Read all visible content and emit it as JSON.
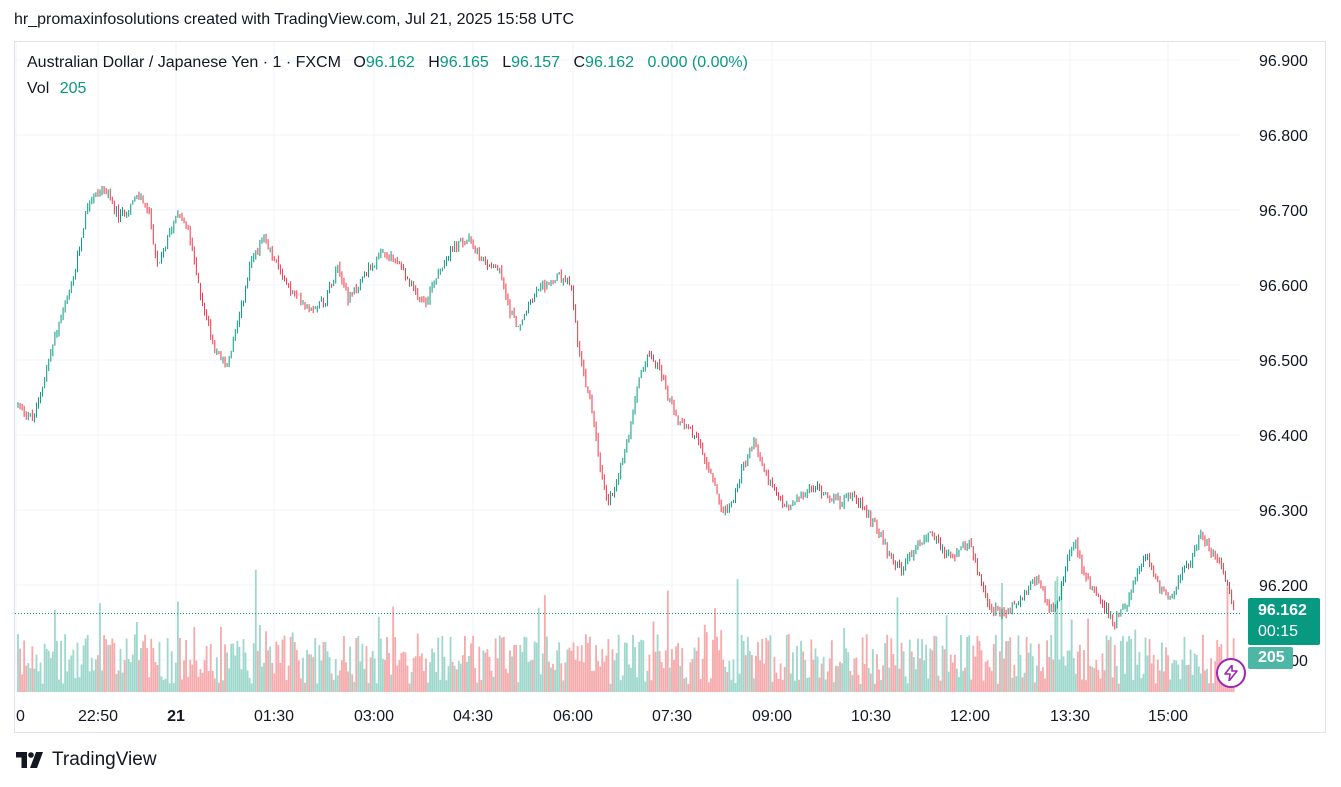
{
  "caption": "hr_promaxinfosolutions created with TradingView.com, Jul 21, 2025 15:58 UTC",
  "legend": {
    "symbol": "Australian Dollar / Japanese Yen · 1 · FXCM",
    "o_label": "O",
    "o_value": "96.162",
    "h_label": "H",
    "h_value": "96.165",
    "l_label": "L",
    "l_value": "96.157",
    "c_label": "C",
    "c_value": "96.162",
    "change": "0.000 (0.00%)",
    "vol_label": "Vol",
    "vol_value": "205"
  },
  "badges": {
    "price": "96.162",
    "countdown": "00:15",
    "volume": "205"
  },
  "footer": {
    "brand": "TradingView"
  },
  "colors": {
    "up": "#089981",
    "down": "#f23645",
    "vol_up": "#9ed7cb",
    "vol_down": "#f5aaab"
  },
  "chart_data": {
    "type": "candlestick",
    "y_ticks": [
      "96.900",
      "96.800",
      "96.700",
      "96.600",
      "96.500",
      "96.400",
      "96.300",
      "96.200",
      "96.100"
    ],
    "y_tick_values": [
      96.9,
      96.8,
      96.7,
      96.6,
      96.5,
      96.4,
      96.3,
      96.2,
      96.1
    ],
    "x_ticks": [
      "0",
      "22:50",
      "21",
      "01:30",
      "03:00",
      "04:30",
      "06:00",
      "07:30",
      "09:00",
      "10:30",
      "12:00",
      "13:30",
      "15:00"
    ],
    "ylim": [
      96.04,
      96.92
    ],
    "last_price": 96.162,
    "grid": true,
    "close_path": [
      [
        0,
        96.44
      ],
      [
        1.0,
        96.42
      ],
      [
        2.5,
        96.54
      ],
      [
        3.5,
        96.6
      ],
      [
        4.5,
        96.71
      ],
      [
        5.5,
        96.73
      ],
      [
        6.5,
        96.69
      ],
      [
        7.4,
        96.71
      ],
      [
        7.9,
        96.72
      ],
      [
        8.5,
        96.69
      ],
      [
        9.0,
        96.62
      ],
      [
        9.6,
        96.66
      ],
      [
        10.3,
        96.7
      ],
      [
        11.0,
        96.67
      ],
      [
        11.6,
        96.6
      ],
      [
        12.6,
        96.52
      ],
      [
        13.4,
        96.49
      ],
      [
        14.2,
        96.55
      ],
      [
        15.0,
        96.63
      ],
      [
        15.8,
        96.66
      ],
      [
        16.6,
        96.63
      ],
      [
        17.6,
        96.59
      ],
      [
        18.8,
        96.57
      ],
      [
        19.8,
        96.58
      ],
      [
        20.6,
        96.63
      ],
      [
        21.3,
        96.58
      ],
      [
        22.5,
        96.62
      ],
      [
        23.5,
        96.64
      ],
      [
        24.5,
        96.63
      ],
      [
        25.5,
        96.59
      ],
      [
        26.3,
        96.58
      ],
      [
        27.1,
        96.62
      ],
      [
        28.0,
        96.65
      ],
      [
        29.0,
        96.66
      ],
      [
        30.1,
        96.63
      ],
      [
        31.0,
        96.62
      ],
      [
        31.6,
        96.57
      ],
      [
        32.3,
        96.54
      ],
      [
        33.0,
        96.58
      ],
      [
        34.0,
        96.6
      ],
      [
        34.8,
        96.61
      ],
      [
        35.6,
        96.6
      ],
      [
        36.2,
        96.5
      ],
      [
        37.0,
        96.43
      ],
      [
        37.5,
        96.35
      ],
      [
        38.0,
        96.31
      ],
      [
        38.6,
        96.34
      ],
      [
        39.3,
        96.4
      ],
      [
        40.0,
        96.48
      ],
      [
        40.7,
        96.51
      ],
      [
        41.3,
        96.49
      ],
      [
        42.0,
        96.44
      ],
      [
        42.8,
        96.41
      ],
      [
        43.6,
        96.4
      ],
      [
        44.4,
        96.36
      ],
      [
        45.3,
        96.3
      ],
      [
        46.0,
        96.31
      ],
      [
        46.7,
        96.36
      ],
      [
        47.4,
        96.39
      ],
      [
        48.1,
        96.35
      ],
      [
        48.8,
        96.32
      ],
      [
        49.6,
        96.3
      ],
      [
        50.5,
        96.32
      ],
      [
        51.4,
        96.33
      ],
      [
        52.2,
        96.32
      ],
      [
        53.0,
        96.31
      ],
      [
        53.8,
        96.32
      ],
      [
        54.6,
        96.3
      ],
      [
        55.4,
        96.27
      ],
      [
        56.1,
        96.24
      ],
      [
        56.8,
        96.22
      ],
      [
        57.5,
        96.24
      ],
      [
        58.2,
        96.26
      ],
      [
        58.9,
        96.27
      ],
      [
        59.7,
        96.24
      ],
      [
        60.5,
        96.24
      ],
      [
        61.2,
        96.26
      ],
      [
        61.9,
        96.21
      ],
      [
        62.6,
        96.17
      ],
      [
        63.4,
        96.16
      ],
      [
        64.1,
        96.17
      ],
      [
        64.8,
        96.19
      ],
      [
        65.6,
        96.21
      ],
      [
        66.4,
        96.17
      ],
      [
        67.0,
        96.18
      ],
      [
        67.6,
        96.24
      ],
      [
        68.1,
        96.26
      ],
      [
        68.7,
        96.21
      ],
      [
        69.4,
        96.19
      ],
      [
        70.0,
        96.17
      ],
      [
        70.6,
        96.15
      ],
      [
        71.3,
        96.17
      ],
      [
        72.0,
        96.21
      ],
      [
        72.7,
        96.24
      ],
      [
        73.4,
        96.2
      ],
      [
        74.1,
        96.18
      ],
      [
        74.8,
        96.21
      ],
      [
        75.5,
        96.23
      ],
      [
        76.1,
        96.27
      ],
      [
        76.7,
        96.25
      ],
      [
        77.3,
        96.23
      ],
      [
        77.9,
        96.2
      ],
      [
        78.3,
        96.162
      ]
    ]
  }
}
